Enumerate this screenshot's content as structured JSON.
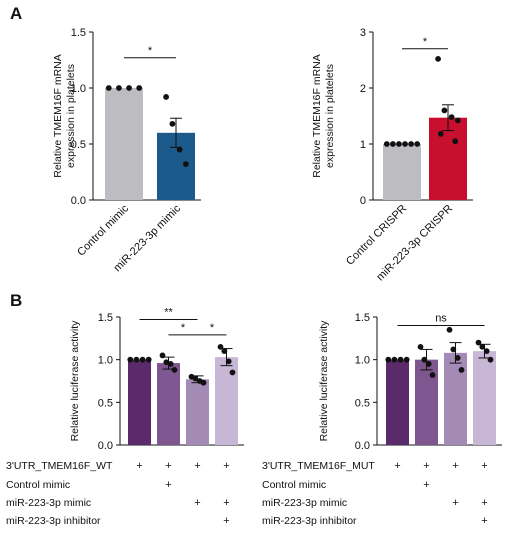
{
  "panels": {
    "a": "A",
    "b": "B"
  },
  "chart_data": [
    {
      "type": "bar",
      "ylabel": "Relative TMEM16F mRNA expression in platelets",
      "ylim": [
        0,
        1.5
      ],
      "yticks": [
        "0.0",
        "0.5",
        "1.0",
        "1.5"
      ],
      "categories": [
        "Control mimic",
        "miR-223-3p mimic"
      ],
      "values": [
        1.0,
        0.6
      ],
      "sem": [
        0,
        0.13
      ],
      "colors": [
        "#bdbcc1",
        "#1d5a8c"
      ],
      "points": [
        [
          1.0,
          1.0,
          1.0,
          1.0
        ],
        [
          0.92,
          0.68,
          0.45,
          0.32
        ]
      ],
      "significance": [
        {
          "from": 0,
          "to": 1,
          "y": 1.27,
          "label": "*"
        }
      ]
    },
    {
      "type": "bar",
      "ylabel": "Relative TMEM16F mRNA expression in platelets",
      "ylim": [
        0,
        3
      ],
      "yticks": [
        "0",
        "1",
        "2",
        "3"
      ],
      "categories": [
        "Control CRISPR",
        "miR-223-3p CRISPR"
      ],
      "values": [
        1.0,
        1.47
      ],
      "sem": [
        0,
        0.23
      ],
      "colors": [
        "#bdbcc1",
        "#c8102e"
      ],
      "points": [
        [
          1.0,
          1.0,
          1.0,
          1.0,
          1.0,
          1.0
        ],
        [
          2.52,
          1.6,
          1.48,
          1.42,
          1.18,
          1.05
        ]
      ],
      "significance": [
        {
          "from": 0,
          "to": 1,
          "y": 2.7,
          "label": "*"
        }
      ]
    },
    {
      "type": "bar",
      "ylabel": "Relative luciferase activity",
      "ylim": [
        0,
        1.5
      ],
      "yticks": [
        "0.0",
        "0.5",
        "1.0",
        "1.5"
      ],
      "values": [
        1.0,
        0.96,
        0.77,
        1.03
      ],
      "sem": [
        0,
        0.07,
        0.04,
        0.1
      ],
      "colors": [
        "#5b2a6b",
        "#7e5690",
        "#a48bb6",
        "#c8b6d6"
      ],
      "points": [
        [
          1.0,
          1.0,
          1.0,
          1.0
        ],
        [
          1.05,
          0.97,
          0.95,
          0.88
        ],
        [
          0.8,
          0.78,
          0.75,
          0.73
        ],
        [
          1.15,
          1.1,
          0.98,
          0.85
        ]
      ],
      "significance": [
        {
          "from": 0,
          "to": 2,
          "y": 1.47,
          "label": "**"
        },
        {
          "from": 1,
          "to": 2,
          "y": 1.29,
          "label": "*"
        },
        {
          "from": 2,
          "to": 3,
          "y": 1.29,
          "label": "*"
        }
      ]
    },
    {
      "type": "bar",
      "ylabel": "Relative luciferase activity",
      "ylim": [
        0,
        1.5
      ],
      "yticks": [
        "0.0",
        "0.5",
        "1.0",
        "1.5"
      ],
      "values": [
        1.0,
        1.0,
        1.08,
        1.1
      ],
      "sem": [
        0,
        0.12,
        0.12,
        0.08
      ],
      "colors": [
        "#5b2a6b",
        "#7e5690",
        "#a48bb6",
        "#c8b6d6"
      ],
      "points": [
        [
          1.0,
          1.0,
          1.0,
          1.0
        ],
        [
          1.15,
          1.0,
          0.95,
          0.82
        ],
        [
          1.35,
          1.12,
          1.02,
          0.88
        ],
        [
          1.2,
          1.15,
          1.1,
          1.0
        ]
      ],
      "significance": [
        {
          "from": 0,
          "to": 3,
          "y": 1.4,
          "label": "ns"
        }
      ]
    }
  ],
  "conditions_left": {
    "rows": [
      {
        "label": "3'UTR_TMEM16F_WT",
        "marks": [
          "+",
          "+",
          "+",
          "+"
        ]
      },
      {
        "label": "Control mimic",
        "marks": [
          "",
          "+",
          "",
          ""
        ]
      },
      {
        "label": "miR-223-3p mimic",
        "marks": [
          "",
          "",
          "+",
          "+"
        ]
      },
      {
        "label": "miR-223-3p inhibitor",
        "marks": [
          "",
          "",
          "",
          "+"
        ]
      }
    ]
  },
  "conditions_right": {
    "rows": [
      {
        "label": "3'UTR_TMEM16F_MUT",
        "marks": [
          "+",
          "+",
          "+",
          "+"
        ]
      },
      {
        "label": "Control mimic",
        "marks": [
          "",
          "+",
          "",
          ""
        ]
      },
      {
        "label": "miR-223-3p mimic",
        "marks": [
          "",
          "",
          "+",
          "+"
        ]
      },
      {
        "label": "miR-223-3p inhibitor",
        "marks": [
          "",
          "",
          "",
          "+"
        ]
      }
    ]
  }
}
